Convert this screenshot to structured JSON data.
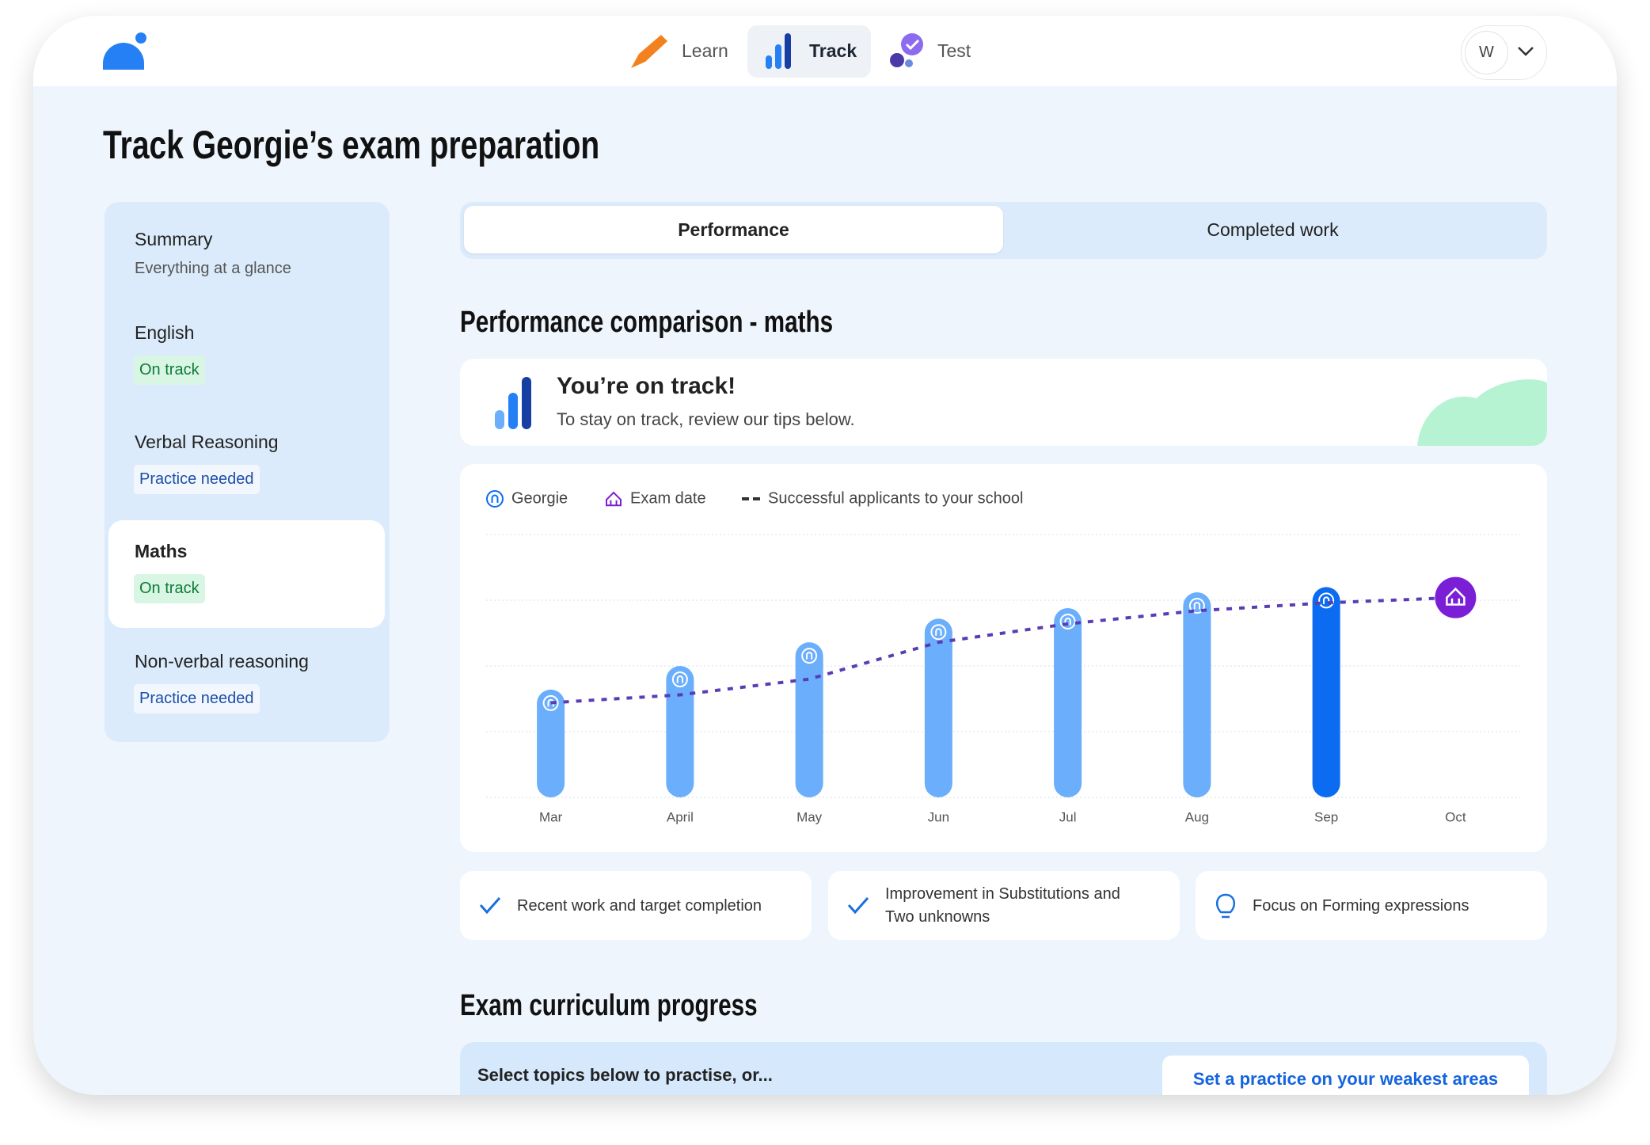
{
  "nav": [
    {
      "label": "Learn"
    },
    {
      "label": "Track",
      "active": true
    },
    {
      "label": "Test"
    }
  ],
  "avatar": "W",
  "page_title": "Track Georgie’s exam preparation",
  "sidebar": [
    {
      "title": "Summary",
      "subtitle": "Everything at a glance"
    },
    {
      "title": "English",
      "status": "On track",
      "status_color": "#0f7a3a",
      "status_bg": "#d8f6e3"
    },
    {
      "title": "Verbal Reasoning",
      "status": "Practice needed",
      "status_color": "#1c4fa8",
      "status_bg": "#f2f7fe"
    },
    {
      "title": "Maths",
      "status": "On track",
      "status_color": "#0f7a3a",
      "status_bg": "#d8f6e3",
      "selected": true
    },
    {
      "title": "Non-verbal reasoning",
      "status": "Practice needed",
      "status_color": "#1c4fa8",
      "status_bg": "#f2f7fe"
    }
  ],
  "tabs": [
    {
      "label": "Performance",
      "active": true
    },
    {
      "label": "Completed work"
    }
  ],
  "section_title": "Performance comparison - maths",
  "banner": {
    "title": "You’re on track!",
    "text": "To stay on track, review our tips below."
  },
  "chart_data": {
    "type": "bar",
    "categories": [
      "Mar",
      "April",
      "May",
      "Jun",
      "Jul",
      "Aug",
      "Sep",
      "Oct"
    ],
    "series": [
      {
        "name": "Georgie",
        "type": "bar",
        "values": [
          41,
          50,
          59,
          68,
          72,
          78,
          80,
          null
        ],
        "colors": [
          "#6aaefc",
          "#6aaefc",
          "#6aaefc",
          "#6aaefc",
          "#6aaefc",
          "#6aaefc",
          "#0b6cf2",
          "#6aaefc"
        ]
      },
      {
        "name": "Successful applicants to your school",
        "type": "line",
        "color": "#5a3db5",
        "dashed": true,
        "values": [
          36,
          39,
          45,
          59,
          66,
          71,
          74,
          76
        ]
      }
    ],
    "exam_date": {
      "name": "Exam date",
      "category": "Oct",
      "color": "#7b1fd6"
    },
    "ylim": [
      0,
      100
    ],
    "yticks": [
      0,
      25,
      50,
      75,
      100
    ],
    "grid": true
  },
  "insights": [
    {
      "icon": "check",
      "text": "Recent work and target completion"
    },
    {
      "icon": "check",
      "text": "Improvement in Substitutions and Two unknowns"
    },
    {
      "icon": "bulb",
      "text": "Focus on Forming expressions"
    }
  ],
  "curriculum": {
    "title": "Exam curriculum progress",
    "prompt": "Select topics below to practise, or...",
    "button": "Set a practice on your weakest areas"
  }
}
